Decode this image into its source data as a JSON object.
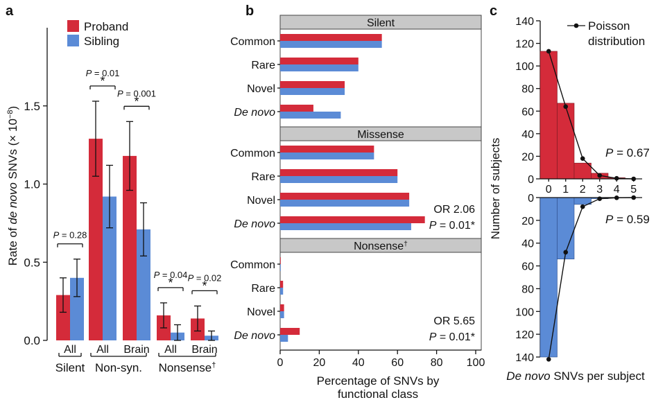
{
  "colors": {
    "proband": "#d42b3a",
    "sibling": "#5b8bd6",
    "bar_outline": "#7a1a22",
    "header_fill": "#c8c8c8",
    "poisson": "#111111"
  },
  "chart_data": [
    {
      "panel": "a",
      "type": "bar",
      "ylabel": {
        "pre": "Rate of ",
        "italic": "de novo",
        "post": " SNVs (× 10",
        "sup": "−8",
        "end": ")"
      },
      "ylim": [
        0,
        2.0
      ],
      "yticks": [
        "0.0",
        "0.5",
        "1.0",
        "1.5"
      ],
      "legend": [
        "Proband",
        "Sibling"
      ],
      "groups": [
        {
          "label": "All",
          "proband": 0.29,
          "proband_err": 0.11,
          "sibling": 0.4,
          "sibling_err": 0.12
        },
        {
          "label": "All",
          "proband": 1.29,
          "proband_err": 0.24,
          "sibling": 0.92,
          "sibling_err": 0.2
        },
        {
          "label": "Brain",
          "proband": 1.18,
          "proband_err": 0.22,
          "sibling": 0.71,
          "sibling_err": 0.17
        },
        {
          "label": "All",
          "proband": 0.16,
          "proband_err": 0.08,
          "sibling": 0.05,
          "sibling_err": 0.05
        },
        {
          "label": "Brain",
          "proband": 0.14,
          "proband_err": 0.08,
          "sibling": 0.03,
          "sibling_err": 0.03
        }
      ],
      "categories": [
        "Silent",
        "Non-syn.",
        "Nonsense"
      ],
      "nonsense_mark": "†",
      "pvalues": [
        {
          "text": "P = 0.28",
          "star": "",
          "group": 0
        },
        {
          "text": "P = 0.01",
          "star": "*",
          "group": 1
        },
        {
          "text": "P = 0.001",
          "star": "*",
          "group": 2
        },
        {
          "text": "P = 0.04",
          "star": "*",
          "group": 3
        },
        {
          "text": "P = 0.02",
          "star": "*",
          "group": 4
        }
      ]
    },
    {
      "panel": "b",
      "type": "bar",
      "orientation": "horizontal",
      "xlabel": [
        "Percentage of SNVs by",
        "functional class"
      ],
      "xlim": [
        0,
        100
      ],
      "xticks": [
        "0",
        "20",
        "40",
        "60",
        "80",
        "100"
      ],
      "sections": [
        {
          "title": "Silent",
          "title_sup": "",
          "rows": [
            {
              "label": "Common",
              "proband": 52,
              "sibling": 52
            },
            {
              "label": "Rare",
              "proband": 40,
              "sibling": 40
            },
            {
              "label": "Novel",
              "proband": 33,
              "sibling": 33
            },
            {
              "label": "De novo",
              "proband": 17,
              "sibling": 31
            }
          ],
          "note": [
            "",
            ""
          ]
        },
        {
          "title": "Missense",
          "title_sup": "",
          "rows": [
            {
              "label": "Common",
              "proband": 48,
              "sibling": 48
            },
            {
              "label": "Rare",
              "proband": 60,
              "sibling": 60
            },
            {
              "label": "Novel",
              "proband": 66,
              "sibling": 66
            },
            {
              "label": "De novo",
              "proband": 74,
              "sibling": 67
            }
          ],
          "note": [
            "OR 2.06",
            "P = 0.01*"
          ]
        },
        {
          "title": "Nonsense",
          "title_sup": "†",
          "rows": [
            {
              "label": "Common",
              "proband": 0.3,
              "sibling": 0.3
            },
            {
              "label": "Rare",
              "proband": 1.5,
              "sibling": 1.5
            },
            {
              "label": "Novel",
              "proband": 2,
              "sibling": 2
            },
            {
              "label": "De novo",
              "proband": 10,
              "sibling": 4
            }
          ],
          "note": [
            "OR 5.65",
            "P = 0.01*"
          ]
        }
      ]
    },
    {
      "panel": "c",
      "type": "bar",
      "ylabel": "Number of subjects",
      "xlabel": {
        "italic": "De novo",
        "post": " SNVs per subject"
      },
      "ylim": [
        0,
        140
      ],
      "yticks": [
        "0",
        "20",
        "40",
        "60",
        "80",
        "100",
        "120",
        "140"
      ],
      "x": [
        "0",
        "1",
        "2",
        "3",
        "4",
        "5"
      ],
      "series": [
        {
          "name": "Proband",
          "values": [
            113,
            67,
            14,
            5,
            1,
            0
          ]
        },
        {
          "name": "Sibling",
          "values": [
            140,
            54,
            6,
            1,
            0,
            0
          ]
        }
      ],
      "poisson": {
        "legend": [
          "Poisson",
          "distribution"
        ],
        "proband": [
          113,
          64,
          18,
          3,
          0.5,
          0
        ],
        "sibling": [
          142,
          48,
          8,
          1,
          0.2,
          0
        ]
      },
      "pvalues": [
        "P = 0.67",
        "P = 0.59"
      ]
    }
  ],
  "panel_labels": [
    "a",
    "b",
    "c"
  ]
}
